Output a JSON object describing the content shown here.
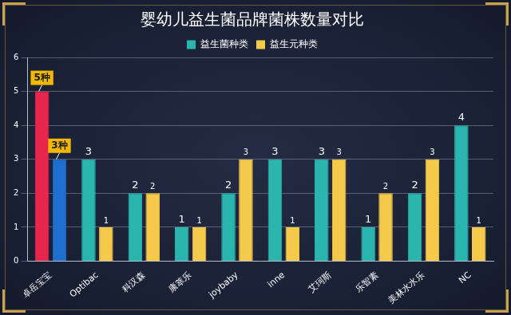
{
  "chart_data": {
    "type": "bar",
    "title": "婴幼儿益生菌品牌菌株数量对比",
    "categories": [
      "卓岳宝宝",
      "Optibac",
      "科汉森",
      "康萃乐",
      "joybaby",
      "inne",
      "艾珂斯",
      "乐智素",
      "美林水水乐",
      "NC"
    ],
    "series": [
      {
        "name": "益生菌种类",
        "color": "#2ab5ae",
        "colors": [
          "#e8254a",
          "#2ab5ae",
          "#2ab5ae",
          "#2ab5ae",
          "#2ab5ae",
          "#2ab5ae",
          "#2ab5ae",
          "#2ab5ae",
          "#2ab5ae",
          "#2ab5ae"
        ],
        "values": [
          5,
          3,
          2,
          1,
          2,
          3,
          3,
          1,
          2,
          4
        ],
        "value_labels": [
          "5种",
          "3",
          "2",
          "1",
          "2",
          "3",
          "3",
          "1",
          "2",
          "4"
        ]
      },
      {
        "name": "益生元种类",
        "color": "#f5c94a",
        "colors": [
          "#1f6fd0",
          "#f5c94a",
          "#f5c94a",
          "#f5c94a",
          "#f5c94a",
          "#f5c94a",
          "#f5c94a",
          "#f5c94a",
          "#f5c94a",
          "#f5c94a"
        ],
        "values": [
          3,
          1,
          2,
          1,
          3,
          1,
          3,
          2,
          3,
          1
        ],
        "value_labels": [
          "3种",
          "1",
          "2",
          "1",
          "3",
          "1",
          "3",
          "2",
          "3",
          "1"
        ]
      }
    ],
    "ylim": [
      0,
      6
    ],
    "yticks": [
      0,
      1,
      2,
      3,
      4,
      5,
      6
    ],
    "grid": true,
    "legend": "top",
    "data_labels": true
  }
}
